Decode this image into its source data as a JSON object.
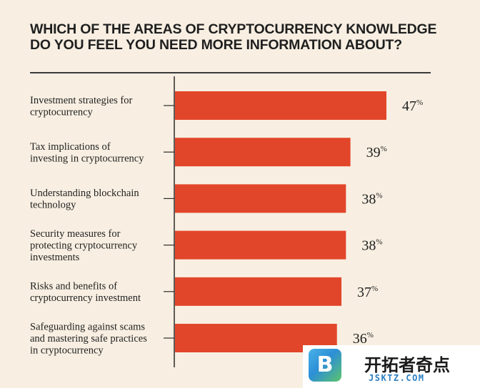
{
  "chart_data": {
    "type": "bar",
    "orientation": "horizontal",
    "title_lines": [
      "WHICH OF THE AREAS OF CRYPTOCURRENCY KNOWLEDGE",
      "DO YOU FEEL YOU NEED MORE INFORMATION ABOUT?"
    ],
    "categories": [
      [
        "Investment strategies for",
        "cryptocurrency"
      ],
      [
        "Tax implications of",
        "investing in cryptocurrency"
      ],
      [
        "Understanding blockchain",
        "technology"
      ],
      [
        "Security measures for",
        "protecting cryptocurrency",
        "investments"
      ],
      [
        "Risks and benefits of",
        "cryptocurrency investment"
      ],
      [
        "Safeguarding against scams",
        "and mastering safe practices",
        "in cryptocurrency"
      ]
    ],
    "values": [
      47,
      39,
      38,
      38,
      37,
      36
    ],
    "value_suffix": "%",
    "bar_color": "#e2462a",
    "xlim": [
      0,
      47
    ],
    "grid": false
  },
  "watermark": {
    "logo_letter": "B",
    "name": "开拓者奇点",
    "url": "JSKTZ.COM"
  }
}
